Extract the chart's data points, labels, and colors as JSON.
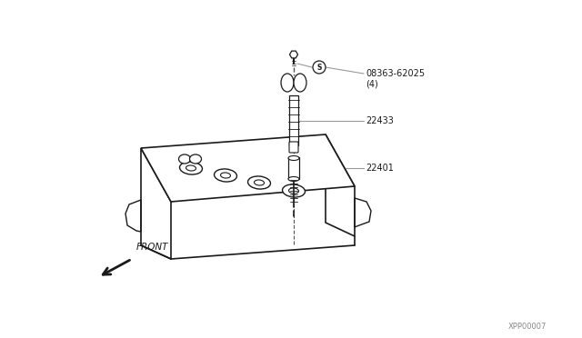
{
  "bg_color": "#ffffff",
  "line_color": "#1a1a1a",
  "text_color": "#1a1a1a",
  "gray_line": "#999999",
  "fig_width": 6.4,
  "fig_height": 3.72,
  "watermark": "XPP00007",
  "part1_code": "08363-62025",
  "part1_qty": "(4)",
  "part2_code": "22433",
  "part3_code": "22401",
  "front_label": "FRONT"
}
